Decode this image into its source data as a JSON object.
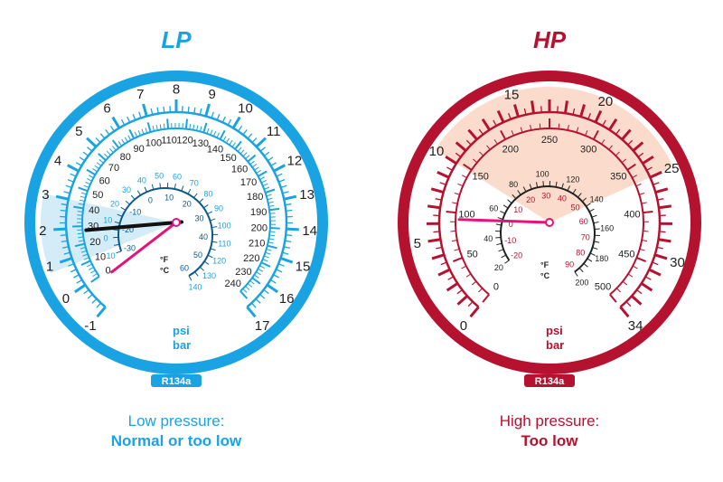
{
  "lp": {
    "title": "LP",
    "color": "#1aa3e2",
    "zone_color": "#d3ecf8",
    "refrigerant": "R134a",
    "caption_label": "Low pressure:",
    "caption_status": "Normal or too low",
    "bar_scale": {
      "unit": "bar",
      "min": -1,
      "max": 17,
      "labels": [
        "-1",
        "0",
        "1",
        "2",
        "3",
        "4",
        "5",
        "6",
        "7",
        "8",
        "9",
        "10",
        "11",
        "12",
        "13",
        "14",
        "15",
        "16",
        "17"
      ]
    },
    "psi_scale": {
      "unit": "psi",
      "min": 0,
      "max": 240,
      "labels": [
        "0",
        "10",
        "20",
        "30",
        "40",
        "50",
        "60",
        "70",
        "80",
        "90",
        "100",
        "110",
        "120",
        "130",
        "140",
        "150",
        "160",
        "170",
        "180",
        "190",
        "200",
        "210",
        "220",
        "230",
        "240"
      ]
    },
    "temp_f_labels": [
      "-10",
      "0",
      "10",
      "20",
      "30",
      "40",
      "50",
      "60",
      "70",
      "80",
      "90",
      "100",
      "110",
      "120",
      "130",
      "140"
    ],
    "temp_c_labels": [
      "-30",
      "-20",
      "-10",
      "0",
      "10",
      "20",
      "30",
      "40",
      "50",
      "60"
    ],
    "temp_unit_f": "°F",
    "temp_unit_c": "°C",
    "psi_unit_label": "psi",
    "bar_unit_label": "bar",
    "normal_zone_bar": [
      0.8,
      3.0
    ],
    "needle_black_bar": 1.9,
    "needle_pink_bar": -0.2
  },
  "hp": {
    "title": "HP",
    "color": "#b5122f",
    "zone_color": "#fbdccc",
    "refrigerant": "R134a",
    "caption_label": "High pressure:",
    "caption_status": "Too low",
    "bar_scale": {
      "unit": "bar",
      "min": 0,
      "max": 34,
      "labels": [
        "0",
        "5",
        "10",
        "15",
        "20",
        "25",
        "30",
        "34"
      ]
    },
    "psi_scale": {
      "unit": "psi",
      "min": 0,
      "max": 500,
      "labels": [
        "0",
        "50",
        "100",
        "150",
        "200",
        "250",
        "300",
        "350",
        "400",
        "450",
        "500"
      ]
    },
    "temp_f_labels": [
      "20",
      "40",
      "60",
      "80",
      "100",
      "120",
      "140",
      "160",
      "180",
      "200"
    ],
    "temp_c_labels": [
      "-20",
      "-10",
      "0",
      "10",
      "20",
      "30",
      "40",
      "50",
      "60",
      "70",
      "80",
      "90"
    ],
    "temp_unit_f": "°F",
    "temp_unit_c": "°C",
    "psi_unit_label": "psi",
    "bar_unit_label": "bar",
    "normal_zone_bar": [
      10,
      25
    ],
    "needle_pink_bar": 6.3
  }
}
